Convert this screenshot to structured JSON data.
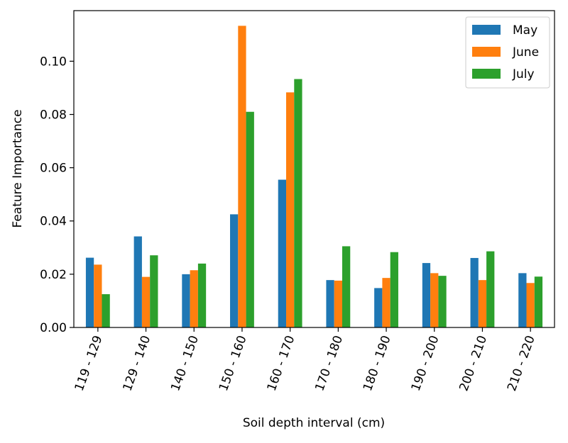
{
  "chart_data": {
    "type": "bar",
    "title": "",
    "xlabel": "Soil depth interval (cm)",
    "ylabel": "Feature Importance",
    "categories": [
      "119 - 129",
      "129 - 140",
      "140 - 150",
      "150 - 160",
      "160 - 170",
      "170 - 180",
      "180 - 190",
      "190 - 200",
      "200 - 210",
      "210 - 220"
    ],
    "series": [
      {
        "name": "May",
        "color": "#1f77b4",
        "values": [
          0.0262,
          0.0342,
          0.02,
          0.0425,
          0.0555,
          0.0178,
          0.0148,
          0.0242,
          0.0261,
          0.0204
        ]
      },
      {
        "name": "June",
        "color": "#ff7f0e",
        "values": [
          0.0236,
          0.019,
          0.0215,
          0.1133,
          0.0883,
          0.0176,
          0.0186,
          0.0204,
          0.0178,
          0.0167
        ]
      },
      {
        "name": "July",
        "color": "#2ca02c",
        "values": [
          0.0125,
          0.0271,
          0.024,
          0.081,
          0.0933,
          0.0305,
          0.0283,
          0.0194,
          0.0286,
          0.0191
        ]
      }
    ],
    "ylim": [
      0,
      0.119
    ],
    "yticks": [
      "0.00",
      "0.02",
      "0.04",
      "0.06",
      "0.08",
      "0.10"
    ],
    "legend_position": "top-right",
    "grid": false
  }
}
